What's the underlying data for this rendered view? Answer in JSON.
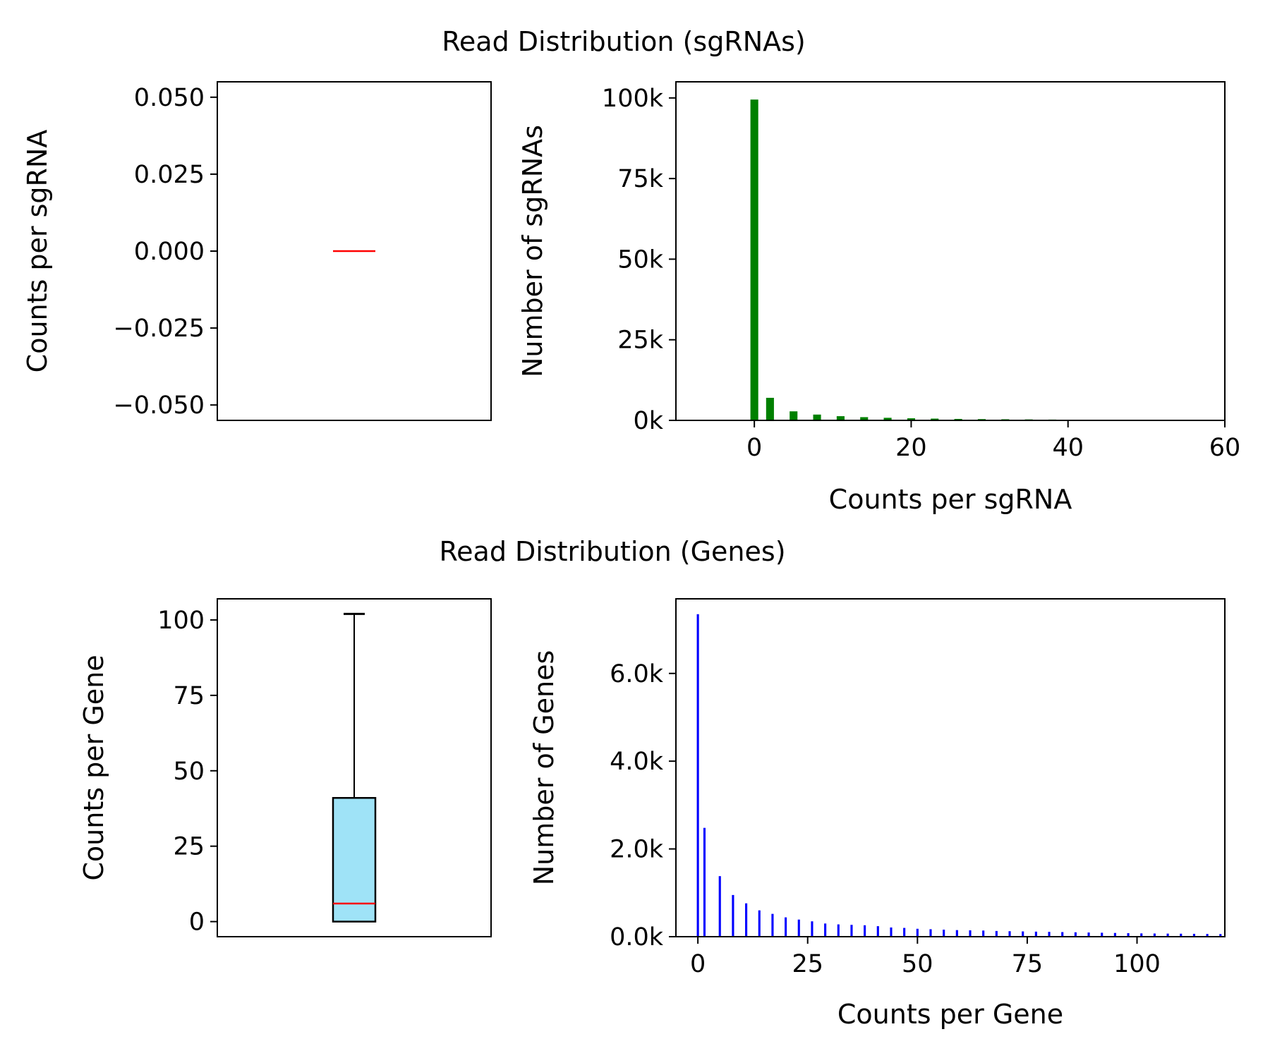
{
  "sgrna_section": {
    "title": "Read Distribution (sgRNAs)"
  },
  "gene_section": {
    "title": "Read Distribution (Genes)"
  },
  "chart_data": [
    {
      "id": "sgrna_box",
      "type": "box",
      "title": "",
      "xlabel": "",
      "ylabel": "Counts per sgRNA",
      "ylim": [
        -0.055,
        0.055
      ],
      "yticks": [
        {
          "value": 0.05,
          "label": "0.050"
        },
        {
          "value": 0.025,
          "label": "0.025"
        },
        {
          "value": 0.0,
          "label": "0.000"
        },
        {
          "value": -0.025,
          "label": "−0.025"
        },
        {
          "value": -0.05,
          "label": "−0.050"
        }
      ],
      "box": {
        "q1": 0,
        "median": 0,
        "q3": 0,
        "whisker_low": 0,
        "whisker_high": 0
      },
      "box_color": "#9fe3f7",
      "median_color": "#ff0000"
    },
    {
      "id": "sgrna_hist",
      "type": "bar",
      "title": "",
      "xlabel": "Counts per sgRNA",
      "ylabel": "Number of sgRNAs",
      "xlim": [
        -10,
        60
      ],
      "ylim": [
        0,
        105000
      ],
      "xticks": [
        {
          "value": 0,
          "label": "0"
        },
        {
          "value": 20,
          "label": "20"
        },
        {
          "value": 40,
          "label": "40"
        },
        {
          "value": 60,
          "label": "60"
        }
      ],
      "yticks": [
        {
          "value": 0,
          "label": "0k"
        },
        {
          "value": 25000,
          "label": "25k"
        },
        {
          "value": 50000,
          "label": "50k"
        },
        {
          "value": 75000,
          "label": "75k"
        },
        {
          "value": 100000,
          "label": "100k"
        }
      ],
      "bar_width": 1.0,
      "color": "#008000",
      "x": [
        0,
        2,
        5,
        8,
        11,
        14,
        17,
        20,
        23,
        26,
        29,
        32,
        35,
        38,
        40
      ],
      "values": [
        99500,
        7000,
        2800,
        1800,
        1300,
        1000,
        800,
        650,
        550,
        450,
        400,
        350,
        300,
        250,
        200
      ]
    },
    {
      "id": "gene_box",
      "type": "box",
      "title": "",
      "xlabel": "",
      "ylabel": "Counts per Gene",
      "ylim": [
        -5,
        107
      ],
      "yticks": [
        {
          "value": 0,
          "label": "0"
        },
        {
          "value": 25,
          "label": "25"
        },
        {
          "value": 50,
          "label": "50"
        },
        {
          "value": 75,
          "label": "75"
        },
        {
          "value": 100,
          "label": "100"
        }
      ],
      "box": {
        "q1": 0,
        "median": 6,
        "q3": 41,
        "whisker_low": 0,
        "whisker_high": 102
      },
      "box_color": "#9fe3f7",
      "median_color": "#ff0000"
    },
    {
      "id": "gene_hist",
      "type": "bar",
      "title": "",
      "xlabel": "Counts per Gene",
      "ylabel": "Number of Genes",
      "xlim": [
        -5,
        120
      ],
      "ylim": [
        0,
        7700
      ],
      "xticks": [
        {
          "value": 0,
          "label": "0"
        },
        {
          "value": 25,
          "label": "25"
        },
        {
          "value": 50,
          "label": "50"
        },
        {
          "value": 75,
          "label": "75"
        },
        {
          "value": 100,
          "label": "100"
        }
      ],
      "yticks": [
        {
          "value": 0,
          "label": "0.0k"
        },
        {
          "value": 2000,
          "label": "2.0k"
        },
        {
          "value": 4000,
          "label": "4.0k"
        },
        {
          "value": 6000,
          "label": "6.0k"
        }
      ],
      "bar_width": 0.5,
      "color": "#0000ff",
      "x": [
        0,
        1.5,
        5,
        8,
        11,
        14,
        17,
        20,
        23,
        26,
        29,
        32,
        35,
        38,
        41,
        44,
        47,
        50,
        53,
        56,
        59,
        62,
        65,
        68,
        71,
        74,
        77,
        80,
        83,
        86,
        89,
        92,
        95,
        98,
        101,
        104,
        107,
        110,
        113,
        116,
        119
      ],
      "values": [
        7350,
        2480,
        1380,
        950,
        760,
        600,
        520,
        440,
        390,
        350,
        300,
        280,
        270,
        260,
        240,
        210,
        200,
        180,
        170,
        160,
        150,
        145,
        140,
        130,
        125,
        120,
        115,
        110,
        105,
        100,
        95,
        90,
        85,
        80,
        75,
        72,
        70,
        68,
        65,
        62,
        60
      ]
    }
  ]
}
